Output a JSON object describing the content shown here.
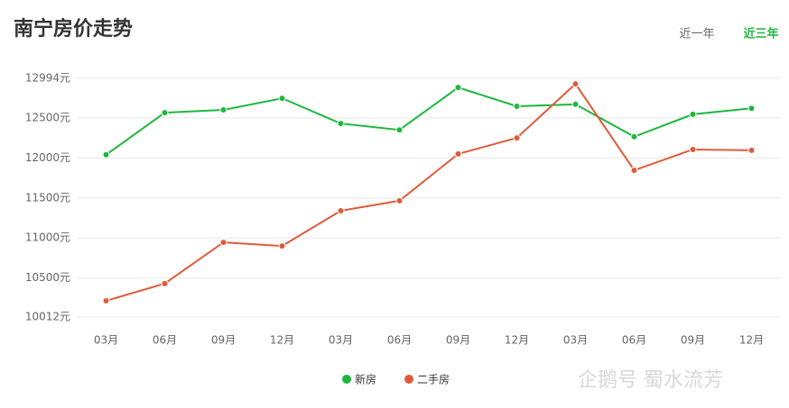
{
  "chart_data": {
    "type": "line",
    "title": "南宁房价走势",
    "categories": [
      "03月",
      "06月",
      "09月",
      "12月",
      "03月",
      "06月",
      "09月",
      "12月",
      "03月",
      "06月",
      "09月",
      "12月"
    ],
    "series": [
      {
        "name": "新房",
        "color": "#1db83f",
        "values": [
          12040,
          12565,
          12600,
          12745,
          12430,
          12350,
          12880,
          12645,
          12670,
          12265,
          12545,
          12620
        ]
      },
      {
        "name": "二手房",
        "color": "#e05a3a",
        "values": [
          10215,
          10430,
          10945,
          10900,
          11340,
          11465,
          12050,
          12250,
          12925,
          11845,
          12105,
          12095
        ]
      }
    ],
    "ylim": [
      10012,
      12994
    ],
    "yticks": [
      {
        "value": 10012,
        "label": "10012元"
      },
      {
        "value": 10500,
        "label": "10500元"
      },
      {
        "value": 11000,
        "label": "11000元"
      },
      {
        "value": 11500,
        "label": "11500元"
      },
      {
        "value": 12000,
        "label": "12000元"
      },
      {
        "value": 12500,
        "label": "12500元"
      },
      {
        "value": 12994,
        "label": "12994元"
      }
    ],
    "grid": true
  },
  "tabs": [
    {
      "label": "近一年",
      "active": false
    },
    {
      "label": "近三年",
      "active": true
    }
  ],
  "watermark": "企鹅号 蜀水流芳"
}
